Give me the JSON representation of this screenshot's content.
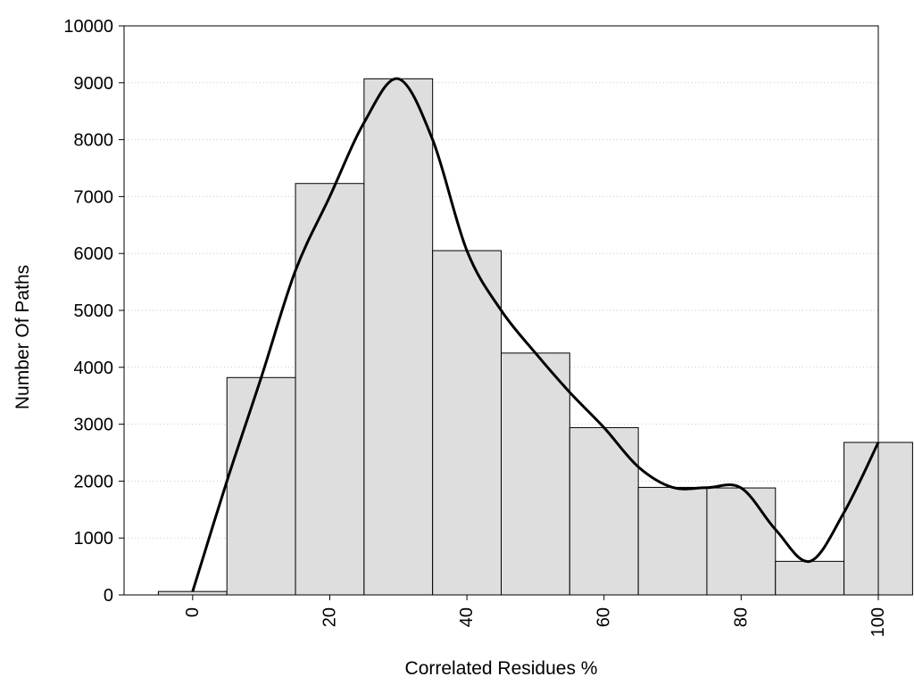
{
  "chart_data": {
    "type": "bar",
    "xlabel": "Correlated Residues %",
    "ylabel": "Number Of Paths",
    "xlim": [
      -10,
      100
    ],
    "ylim": [
      0,
      10000
    ],
    "x_ticks": [
      "0",
      "20",
      "40",
      "60",
      "80",
      "100"
    ],
    "y_ticks": [
      "0",
      "1000",
      "2000",
      "3000",
      "4000",
      "5000",
      "6000",
      "7000",
      "8000",
      "9000",
      "10000"
    ],
    "bin_width": 10,
    "bins": [
      {
        "center": 0,
        "value": 60
      },
      {
        "center": 10,
        "value": 3820
      },
      {
        "center": 20,
        "value": 7230
      },
      {
        "center": 30,
        "value": 9070
      },
      {
        "center": 40,
        "value": 6050
      },
      {
        "center": 50,
        "value": 4250
      },
      {
        "center": 60,
        "value": 2940
      },
      {
        "center": 70,
        "value": 1890
      },
      {
        "center": 80,
        "value": 1880
      },
      {
        "center": 90,
        "value": 590
      },
      {
        "center": 100,
        "value": 2680
      }
    ],
    "curve": {
      "x": [
        0,
        5,
        10,
        15,
        20,
        25,
        30,
        35,
        40,
        45,
        50,
        55,
        60,
        65,
        70,
        75,
        80,
        85,
        90,
        95,
        100
      ],
      "y": [
        60,
        2000,
        3820,
        5700,
        7000,
        8300,
        9070,
        8000,
        6050,
        5000,
        4250,
        3560,
        2940,
        2250,
        1890,
        1885,
        1880,
        1150,
        590,
        1450,
        2680
      ]
    },
    "bar_fill": "#dedede",
    "bar_stroke": "#000000",
    "curve_color": "#000000",
    "grid": "horizontal-dotted",
    "legend": "none"
  }
}
